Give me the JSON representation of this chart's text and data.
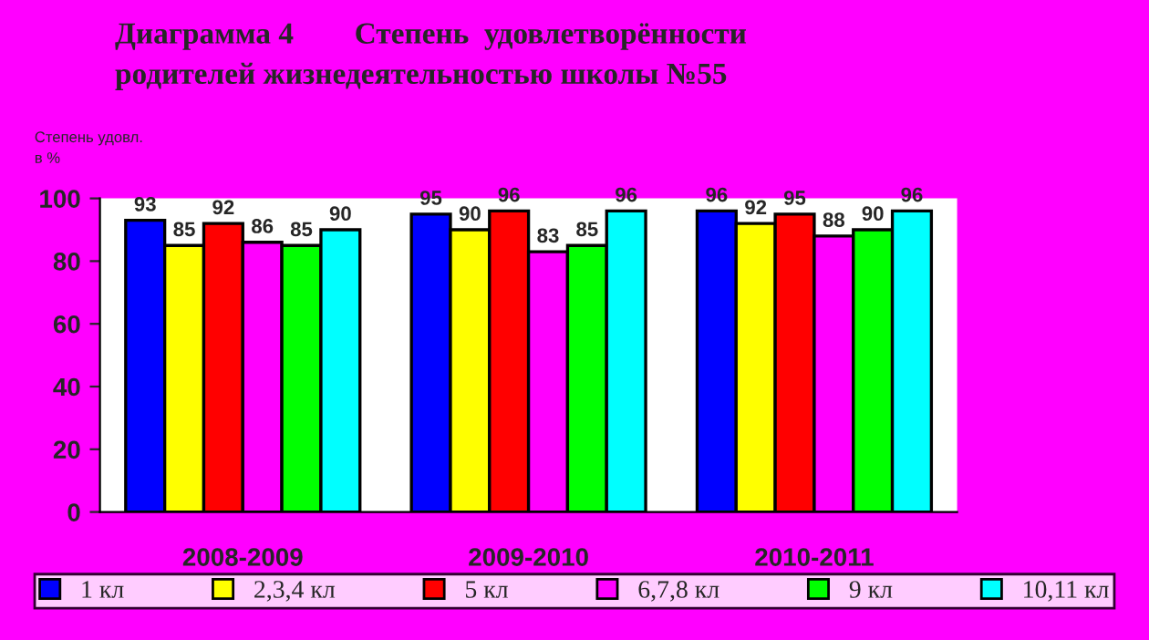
{
  "chart_data": {
    "type": "bar",
    "title": "Диаграмма 4        Степень  удовлетворённости\nродителей жизнедеятельностью школы №55",
    "ylabel": "Степень удовл.\nв %",
    "categories": [
      "2008-2009",
      "2009-2010",
      "2010-2011"
    ],
    "series": [
      {
        "name": "1 кл",
        "color": "#0000ff",
        "values": [
          93,
          95,
          96
        ]
      },
      {
        "name": "2,3,4 кл",
        "color": "#ffff00",
        "values": [
          85,
          90,
          92
        ]
      },
      {
        "name": "5 кл",
        "color": "#ff0000",
        "values": [
          92,
          96,
          95
        ]
      },
      {
        "name": "6,7,8 кл",
        "color": "#ff00ff",
        "values": [
          86,
          83,
          88
        ]
      },
      {
        "name": "9 кл",
        "color": "#00ff00",
        "values": [
          85,
          85,
          90
        ]
      },
      {
        "name": "10,11 кл",
        "color": "#00ffff",
        "values": [
          90,
          96,
          96
        ]
      }
    ],
    "ylim": [
      0,
      100
    ],
    "yticks": [
      0,
      20,
      40,
      60,
      80,
      100
    ],
    "data_labels": true,
    "legend": "bottom",
    "grid": false
  }
}
